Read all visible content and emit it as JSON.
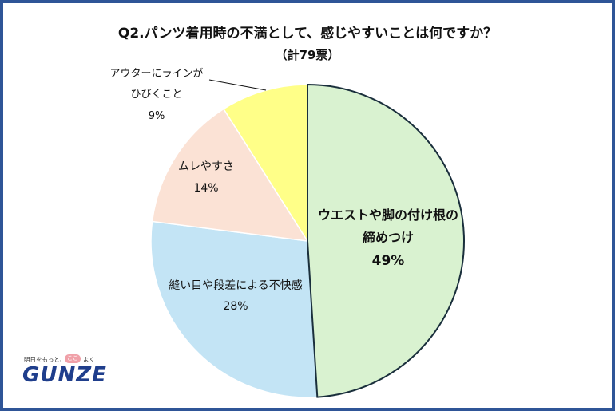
{
  "chart_data": {
    "type": "pie",
    "title": "Q2.パンツ着用時の不満として、感じやすいことは何ですか？",
    "subtitle": "（計79票）",
    "slices": [
      {
        "label_lines": [
          "ウエストや脚の付け根の",
          "締めつけ"
        ],
        "pct_label": "49%",
        "value": 49,
        "color": "#d9f2d0",
        "emphasis": true
      },
      {
        "label_lines": [
          "縫い目や段差による不快感"
        ],
        "pct_label": "28%",
        "value": 28,
        "color": "#c3e4f5",
        "emphasis": false
      },
      {
        "label_lines": [
          "ムレやすさ"
        ],
        "pct_label": "14%",
        "value": 14,
        "color": "#fbe2d5",
        "emphasis": false
      },
      {
        "label_lines": [
          "アウターにラインが",
          "ひびくこと"
        ],
        "pct_label": "9%",
        "value": 9,
        "color": "#ffff88",
        "emphasis": false
      }
    ],
    "start": "12 o'clock, clockwise",
    "legend": "none"
  },
  "logo": {
    "tagline_before": "明日をもっと、",
    "tagline_heart": "ここち",
    "tagline_after": "よく",
    "brand": "GUNZE"
  }
}
